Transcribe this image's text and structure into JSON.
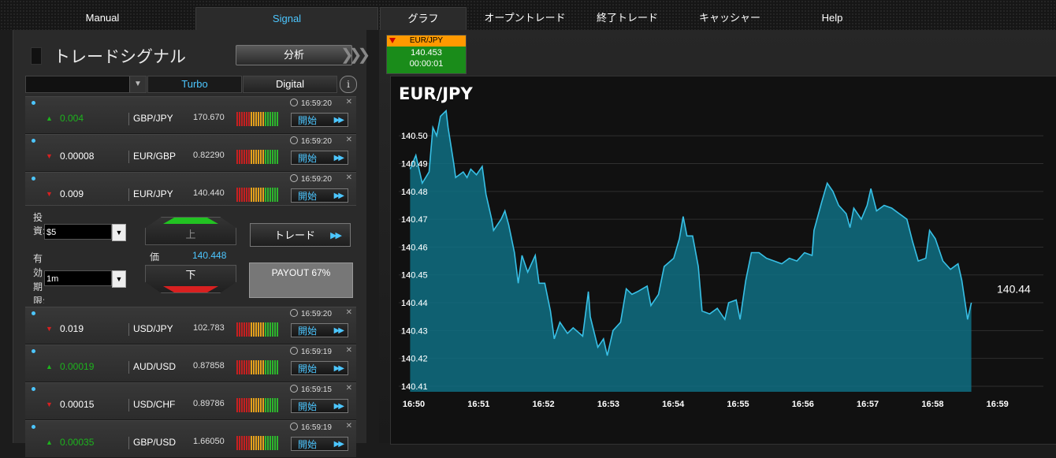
{
  "nav": {
    "tabs": [
      {
        "label": "Manual",
        "selected": false
      },
      {
        "label": "Signal",
        "selected": true
      },
      {
        "label": "グラフ",
        "selected": true
      },
      {
        "label": "オープントレード",
        "selected": false
      },
      {
        "label": "終了トレード",
        "selected": false
      },
      {
        "label": "キャッシャー",
        "selected": false
      },
      {
        "label": "Help",
        "selected": false
      }
    ]
  },
  "colors": {
    "up": "#1db31d",
    "down": "#d82020",
    "accent": "#4cc6ff",
    "chart_fill": "#0f6e82",
    "chart_line": "#38c0e6"
  },
  "panel": {
    "title": "トレードシグナル",
    "analysis_button": "分析",
    "filter": {
      "select_value": "",
      "tab_turbo": "Turbo",
      "tab_digital": "Digital",
      "info_icon": "i"
    },
    "signals": [
      {
        "dir": "up",
        "change": "0.004",
        "pair": "GBP/JPY",
        "price": "170.670",
        "time": "16:59:20",
        "start_label": "開始"
      },
      {
        "dir": "down",
        "change": "0.00008",
        "pair": "EUR/GBP",
        "price": "0.82290",
        "time": "16:59:20",
        "start_label": "開始"
      },
      {
        "dir": "down",
        "change": "0.009",
        "pair": "EUR/JPY",
        "price": "140.440",
        "time": "16:59:20",
        "start_label": "開始"
      },
      {
        "dir": "down",
        "change": "0.019",
        "pair": "USD/JPY",
        "price": "102.783",
        "time": "16:59:20",
        "start_label": "開始"
      },
      {
        "dir": "up",
        "change": "0.00019",
        "pair": "AUD/USD",
        "price": "0.87858",
        "time": "16:59:19",
        "start_label": "開始"
      },
      {
        "dir": "down",
        "change": "0.00015",
        "pair": "USD/CHF",
        "price": "0.89786",
        "time": "16:59:15",
        "start_label": "開始"
      },
      {
        "dir": "up",
        "change": "0.00035",
        "pair": "GBP/USD",
        "price": "1.66050",
        "time": "16:59:19",
        "start_label": "開始"
      }
    ],
    "trade": {
      "invest_label": "投資:",
      "invest_value": "$5",
      "expiry_label": "有効期限:",
      "expiry_value": "1m",
      "up_label": "上",
      "down_label": "下",
      "price_label": "価",
      "price_value": "140.448",
      "trade_button": "トレード",
      "payout": "PAYOUT 67%"
    }
  },
  "asset_tab": {
    "pair": "EUR/JPY",
    "price": "140.453",
    "timer": "00:00:01"
  },
  "chart_data": {
    "type": "area",
    "title": "EUR/JPY",
    "last_value_label": "140.44",
    "y_ticks": [
      "140.41",
      "140.42",
      "140.43",
      "140.44",
      "140.45",
      "140.46",
      "140.47",
      "140.48",
      "140.49",
      "140.50"
    ],
    "x_ticks": [
      "16:50",
      "16:51",
      "16:52",
      "16:53",
      "16:54",
      "16:55",
      "16:56",
      "16:57",
      "16:58",
      "16:59"
    ],
    "ylim": [
      140.408,
      140.508
    ],
    "xlim": [
      16.83,
      17.0
    ],
    "grid": true,
    "points": [
      [
        16.833,
        140.488
      ],
      [
        16.8345,
        140.493
      ],
      [
        16.8362,
        140.483
      ],
      [
        16.838,
        140.487
      ],
      [
        16.839,
        140.503
      ],
      [
        16.84,
        140.5
      ],
      [
        16.841,
        140.507
      ],
      [
        16.8425,
        140.509
      ],
      [
        16.843,
        140.503
      ],
      [
        16.8445,
        140.49
      ],
      [
        16.845,
        140.485
      ],
      [
        16.847,
        140.487
      ],
      [
        16.848,
        140.485
      ],
      [
        16.849,
        140.488
      ],
      [
        16.8505,
        140.486
      ],
      [
        16.852,
        140.489
      ],
      [
        16.853,
        140.479
      ],
      [
        16.8545,
        140.47
      ],
      [
        16.855,
        140.466
      ],
      [
        16.857,
        140.47
      ],
      [
        16.858,
        140.473
      ],
      [
        16.859,
        140.468
      ],
      [
        16.8605,
        140.458
      ],
      [
        16.8615,
        140.447
      ],
      [
        16.8625,
        140.457
      ],
      [
        16.864,
        140.451
      ],
      [
        16.866,
        140.457
      ],
      [
        16.867,
        140.447
      ],
      [
        16.8685,
        140.447
      ],
      [
        16.87,
        140.437
      ],
      [
        16.871,
        140.427
      ],
      [
        16.8725,
        140.433
      ],
      [
        16.8745,
        140.429
      ],
      [
        16.876,
        140.431
      ],
      [
        16.8785,
        140.428
      ],
      [
        16.88,
        140.444
      ],
      [
        16.8805,
        140.435
      ],
      [
        16.8825,
        140.424
      ],
      [
        16.884,
        140.427
      ],
      [
        16.885,
        140.421
      ],
      [
        16.8865,
        140.43
      ],
      [
        16.8885,
        140.433
      ],
      [
        16.89,
        140.445
      ],
      [
        16.8915,
        140.443
      ],
      [
        16.893,
        140.444
      ],
      [
        16.8955,
        140.446
      ],
      [
        16.8965,
        140.439
      ],
      [
        16.8985,
        140.443
      ],
      [
        16.9,
        140.453
      ],
      [
        16.9025,
        140.456
      ],
      [
        16.904,
        140.463
      ],
      [
        16.905,
        140.471
      ],
      [
        16.906,
        140.464
      ],
      [
        16.9075,
        140.464
      ],
      [
        16.909,
        140.453
      ],
      [
        16.91,
        140.437
      ],
      [
        16.912,
        140.436
      ],
      [
        16.914,
        140.438
      ],
      [
        16.916,
        140.434
      ],
      [
        16.917,
        140.44
      ],
      [
        16.919,
        140.441
      ],
      [
        16.92,
        140.434
      ],
      [
        16.9215,
        140.448
      ],
      [
        16.923,
        140.458
      ],
      [
        16.925,
        140.458
      ],
      [
        16.927,
        140.456
      ],
      [
        16.929,
        140.455
      ],
      [
        16.931,
        140.454
      ],
      [
        16.933,
        140.456
      ],
      [
        16.935,
        140.455
      ],
      [
        16.937,
        140.458
      ],
      [
        16.939,
        140.457
      ],
      [
        16.9395,
        140.466
      ],
      [
        16.9415,
        140.476
      ],
      [
        16.943,
        140.483
      ],
      [
        16.9445,
        140.48
      ],
      [
        16.946,
        140.475
      ],
      [
        16.948,
        140.472
      ],
      [
        16.949,
        140.467
      ],
      [
        16.95,
        140.474
      ],
      [
        16.952,
        140.47
      ],
      [
        16.9535,
        140.475
      ],
      [
        16.9545,
        140.481
      ],
      [
        16.956,
        140.473
      ],
      [
        16.958,
        140.475
      ],
      [
        16.96,
        140.474
      ],
      [
        16.962,
        140.472
      ],
      [
        16.964,
        140.47
      ],
      [
        16.9655,
        140.462
      ],
      [
        16.967,
        140.455
      ],
      [
        16.969,
        140.456
      ],
      [
        16.97,
        140.466
      ],
      [
        16.9715,
        140.463
      ],
      [
        16.9735,
        140.455
      ],
      [
        16.9755,
        140.452
      ],
      [
        16.9775,
        140.454
      ],
      [
        16.9785,
        140.448
      ],
      [
        16.98,
        140.434
      ],
      [
        16.981,
        140.44
      ]
    ]
  }
}
